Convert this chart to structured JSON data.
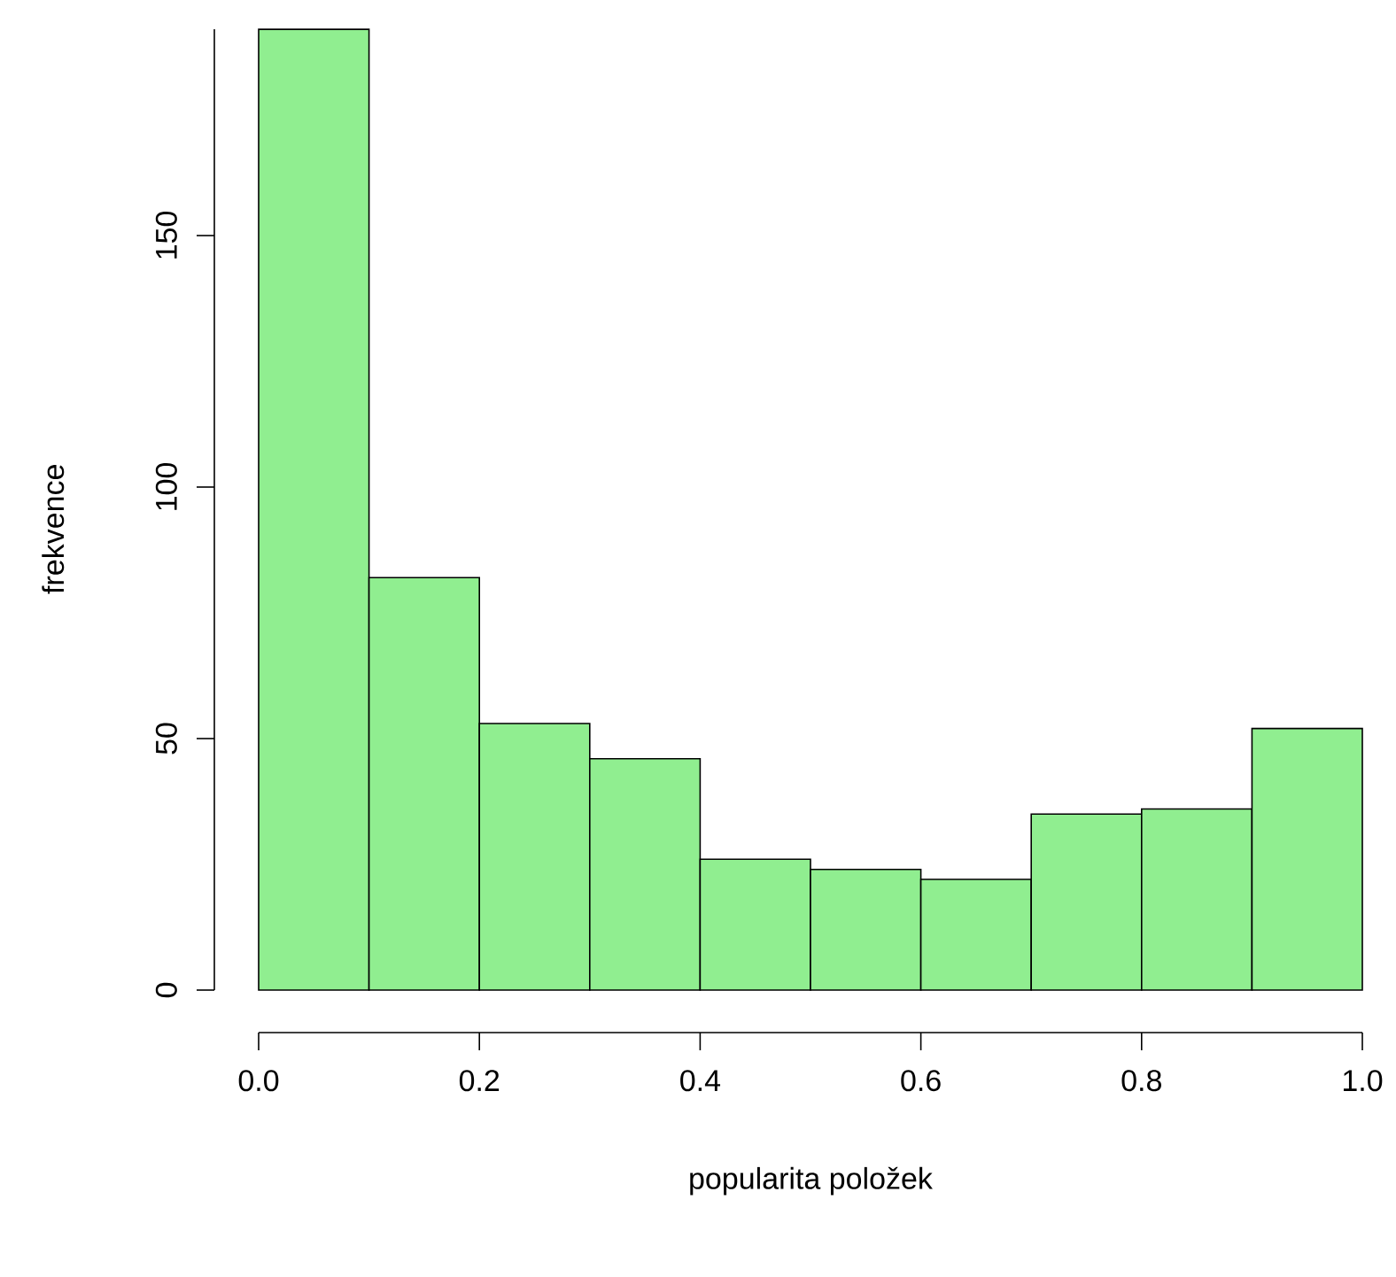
{
  "chart_data": {
    "type": "histogram",
    "xlabel": "popularita položek",
    "ylabel": "frekvence",
    "bins": [
      0,
      0.1,
      0.2,
      0.3,
      0.4,
      0.5,
      0.6,
      0.7,
      0.8,
      0.9,
      1.0
    ],
    "values": [
      191,
      82,
      53,
      46,
      26,
      24,
      22,
      35,
      36,
      52
    ],
    "color": "#90ee90",
    "xlim": [
      0,
      1
    ],
    "ylim": [
      0,
      191
    ],
    "xticks": [
      {
        "value": 0,
        "label": "0.0"
      },
      {
        "value": 0.2,
        "label": "0.2"
      },
      {
        "value": 0.4,
        "label": "0.4"
      },
      {
        "value": 0.6,
        "label": "0.6"
      },
      {
        "value": 0.8,
        "label": "0.8"
      },
      {
        "value": 1.0,
        "label": "1.0"
      }
    ],
    "yticks": [
      0,
      50,
      100,
      150
    ]
  }
}
